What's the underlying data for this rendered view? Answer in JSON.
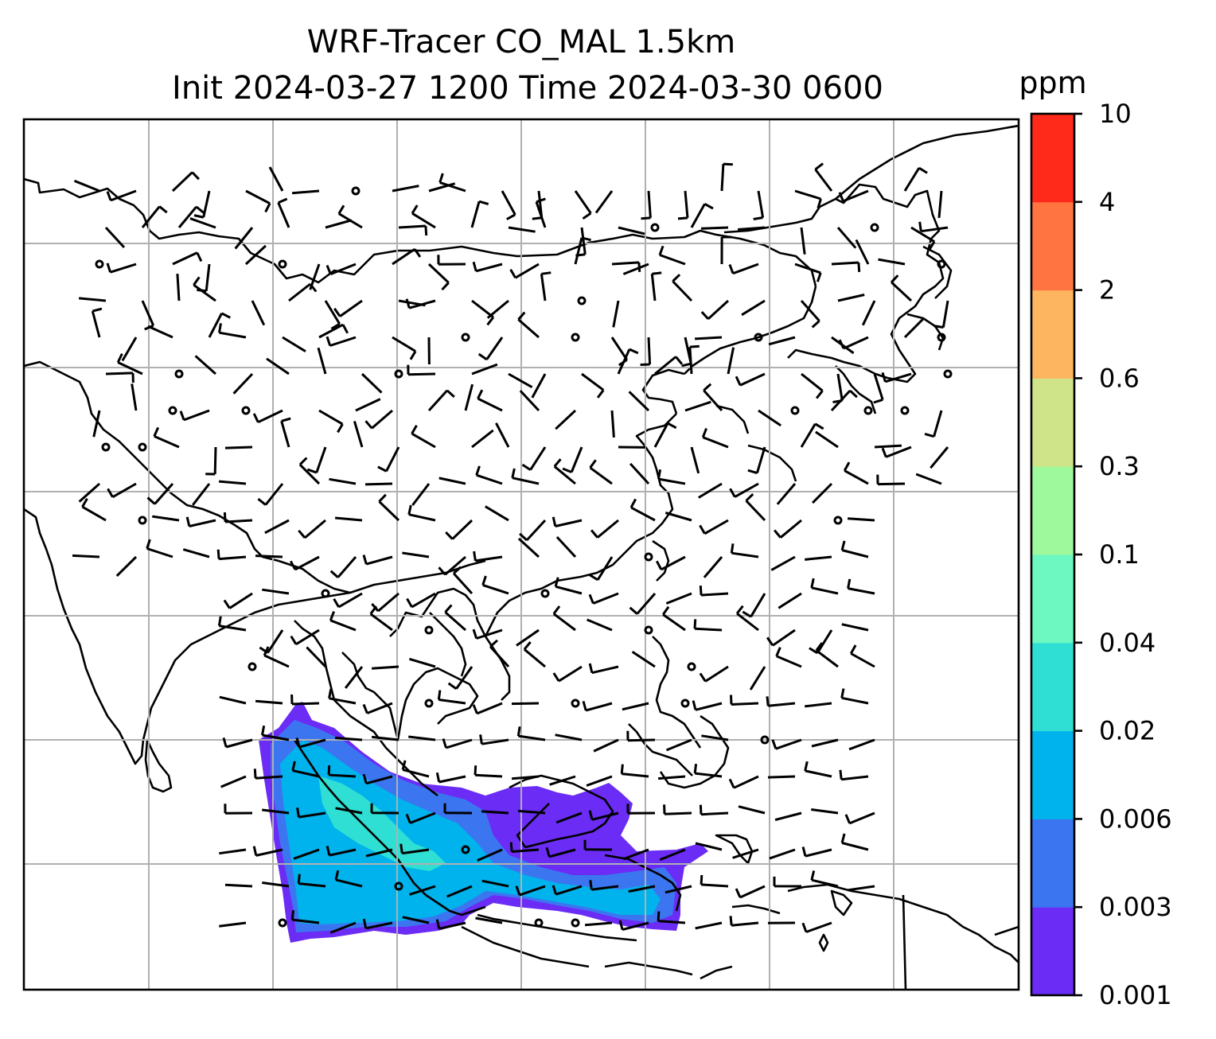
{
  "title": {
    "line1": "WRF-Tracer CO_MAL 1.5km",
    "line2": "Init 2024-03-27 1200 Time 2024-03-30 0600"
  },
  "colorbar": {
    "unit": "ppm",
    "levels": [
      "0.001",
      "0.003",
      "0.006",
      "0.02",
      "0.04",
      "0.1",
      "0.3",
      "0.6",
      "2",
      "4",
      "10"
    ],
    "colors": [
      "#6b2cf5",
      "#3b76f0",
      "#00b3ec",
      "#30dfd4",
      "#6cf8c0",
      "#9df99b",
      "#cfe388",
      "#fdb55f",
      "#ff7440",
      "#ff2a1a"
    ]
  },
  "map": {
    "field": "CO tracer concentration",
    "plume_colors": [
      "#6b2cf5",
      "#3b76f0",
      "#00b3ec",
      "#30dfd4"
    ]
  }
}
